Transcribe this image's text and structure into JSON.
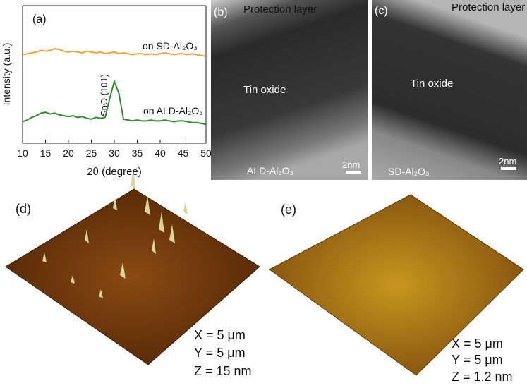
{
  "chart_data": {
    "type": "line",
    "panel_label": "(a)",
    "xlabel": "2θ (degree)",
    "ylabel": "Intensity (a.u.)",
    "xlim": [
      10,
      50
    ],
    "xticks": [
      10,
      15,
      20,
      25,
      30,
      35,
      40,
      45,
      50
    ],
    "ylim": [
      0,
      8
    ],
    "x": [
      10,
      11,
      12,
      13,
      14,
      15,
      16,
      17,
      18,
      19,
      20,
      21,
      22,
      23,
      24,
      25,
      26,
      27,
      28,
      29,
      30,
      31,
      32,
      33,
      34,
      35,
      36,
      37,
      38,
      39,
      40,
      41,
      42,
      43,
      44,
      45,
      46,
      47,
      48,
      49,
      50
    ],
    "series": [
      {
        "name": "on SD-Al₂O₃",
        "color": "#f5a033",
        "values": [
          5.15,
          5.2,
          5.25,
          5.3,
          5.4,
          5.35,
          5.4,
          5.5,
          5.45,
          5.35,
          5.3,
          5.35,
          5.3,
          5.25,
          5.35,
          5.3,
          5.25,
          5.3,
          5.2,
          5.25,
          5.3,
          5.2,
          5.25,
          5.2,
          5.15,
          5.2,
          5.2,
          5.15,
          5.2,
          5.15,
          5.2,
          5.25,
          5.2,
          5.15,
          5.2,
          5.2,
          5.15,
          5.2,
          5.15,
          5.1,
          5.05
        ]
      },
      {
        "name": "on ALD-Al₂O₃",
        "color": "#2e8b2e",
        "values": [
          1.25,
          1.35,
          1.5,
          1.6,
          1.75,
          1.8,
          1.7,
          1.75,
          1.65,
          1.6,
          1.55,
          1.6,
          1.5,
          1.55,
          1.45,
          1.4,
          1.5,
          1.45,
          1.5,
          2.6,
          3.6,
          2.9,
          1.4,
          1.35,
          1.3,
          1.35,
          1.3,
          1.3,
          1.35,
          1.3,
          1.3,
          1.35,
          1.3,
          1.25,
          1.3,
          1.3,
          1.25,
          1.2,
          1.2,
          1.15,
          1.1
        ]
      }
    ],
    "annotation": "SnO (101)"
  },
  "panels": {
    "b": {
      "label": "(b)",
      "top": "Protection layer",
      "middle": "Tin oxide",
      "scale": "2nm",
      "bottom": "ALD-Al₂O₃"
    },
    "c": {
      "label": "(c)",
      "top": "Protection layer",
      "middle": "Tin oxide",
      "scale": "2nm",
      "bottom": "SD-Al₂O₃"
    },
    "d": {
      "label": "(d)",
      "x": "X = 5 μm",
      "y": "Y = 5 μm",
      "z": "Z = 15 nm"
    },
    "e": {
      "label": "(e)",
      "x": "X = 5 μm",
      "y": "Y = 5 μm",
      "z": "Z = 1.2 nm"
    }
  }
}
